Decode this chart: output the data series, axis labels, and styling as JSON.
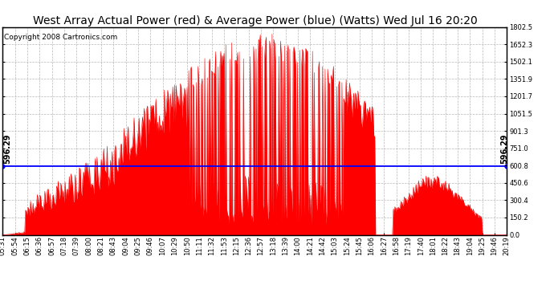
{
  "title": "West Array Actual Power (red) & Average Power (blue) (Watts) Wed Jul 16 20:20",
  "copyright": "Copyright 2008 Cartronics.com",
  "avg_power": 596.29,
  "y_max": 1802.5,
  "y_min": 0.0,
  "y_ticks": [
    0.0,
    150.2,
    300.4,
    450.6,
    600.8,
    751.0,
    901.3,
    1051.5,
    1201.7,
    1351.9,
    1502.1,
    1652.3,
    1802.5
  ],
  "background_color": "#ffffff",
  "fill_color": "#ff0000",
  "line_color": "#0000ff",
  "grid_color": "#b0b0b0",
  "title_fontsize": 10,
  "copyright_fontsize": 6.5,
  "avg_label_fontsize": 7,
  "tick_fontsize": 6,
  "x_tick_labels": [
    "05:31",
    "05:54",
    "06:15",
    "06:36",
    "06:57",
    "07:18",
    "07:39",
    "08:00",
    "08:21",
    "08:43",
    "09:04",
    "09:25",
    "09:46",
    "10:07",
    "10:29",
    "10:50",
    "11:11",
    "11:32",
    "11:53",
    "12:15",
    "12:36",
    "12:57",
    "13:18",
    "13:39",
    "14:00",
    "14:21",
    "14:42",
    "15:03",
    "15:24",
    "15:45",
    "16:06",
    "16:27",
    "16:58",
    "17:19",
    "17:40",
    "18:01",
    "18:22",
    "18:43",
    "19:04",
    "19:25",
    "19:46",
    "20:19"
  ]
}
